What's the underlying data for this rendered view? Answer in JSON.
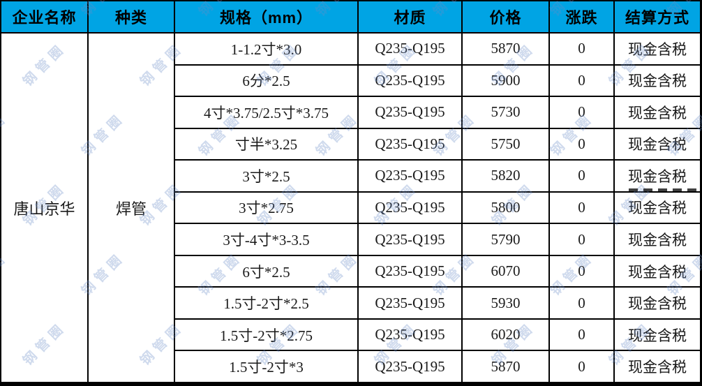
{
  "theme": {
    "header_bg": "#00A4E4",
    "border_color": "#000000",
    "cell_bg": "#FFFFFF",
    "header_text_color": "#000000",
    "body_text_color": "#1A1A1A",
    "watermark_color": "rgba(107,141,199,0.32)"
  },
  "watermark": {
    "text": "钢管圈"
  },
  "table": {
    "headers": [
      "企业名称",
      "种类",
      "规格（mm）",
      "材质",
      "价格",
      "涨跌",
      "结算方式"
    ],
    "company": "唐山京华",
    "category": "焊管",
    "rows": [
      {
        "spec": "1-1.2寸*3.0",
        "material": "Q235-Q195",
        "price": "5870",
        "change": "0",
        "settlement": "现金含税"
      },
      {
        "spec": "6分*2.5",
        "material": "Q235-Q195",
        "price": "5900",
        "change": "0",
        "settlement": "现金含税"
      },
      {
        "spec": "4寸*3.75/2.5寸*3.75",
        "material": "Q235-Q195",
        "price": "5730",
        "change": "0",
        "settlement": "现金含税"
      },
      {
        "spec": "寸半*3.25",
        "material": "Q235-Q195",
        "price": "5750",
        "change": "0",
        "settlement": "现金含税"
      },
      {
        "spec": "3寸*2.5",
        "material": "Q235-Q195",
        "price": "5820",
        "change": "0",
        "settlement": "现金含税"
      },
      {
        "spec": "3寸*2.75",
        "material": "Q235-Q195",
        "price": "5800",
        "change": "0",
        "settlement": "现金含税"
      },
      {
        "spec": "3寸-4寸*3-3.5",
        "material": "Q235-Q195",
        "price": "5790",
        "change": "0",
        "settlement": "现金含税"
      },
      {
        "spec": "6寸*2.5",
        "material": "Q235-Q195",
        "price": "6070",
        "change": "0",
        "settlement": "现金含税"
      },
      {
        "spec": "1.5寸-2寸*2.5",
        "material": "Q235-Q195",
        "price": "5930",
        "change": "0",
        "settlement": "现金含税"
      },
      {
        "spec": "1.5寸-2寸*2.75",
        "material": "Q235-Q195",
        "price": "6020",
        "change": "0",
        "settlement": "现金含税"
      },
      {
        "spec": "1.5寸-2寸*3",
        "material": "Q235-Q195",
        "price": "5870",
        "change": "0",
        "settlement": "现金含税"
      }
    ]
  }
}
